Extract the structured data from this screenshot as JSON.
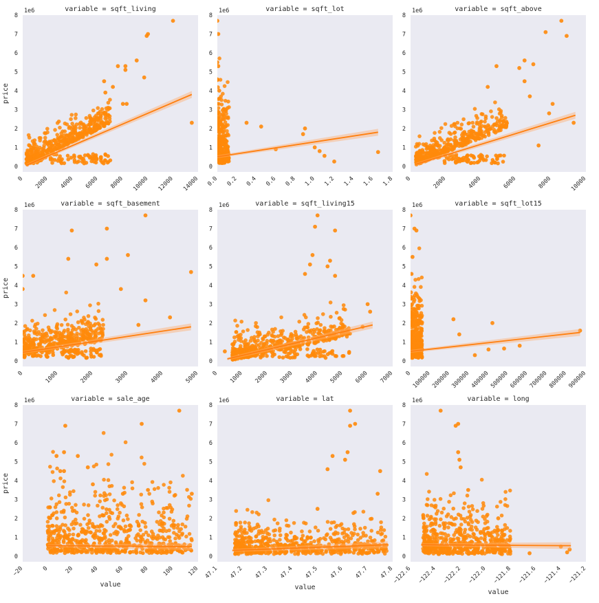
{
  "figure": {
    "x_axis_label": "value",
    "y_axis_label": "price",
    "y_scale_label": "1e6"
  },
  "colors": {
    "point": "#ff8a0a",
    "line": "#ff7f0e",
    "band": "#ffb070",
    "panel_bg": "#eaeaf2",
    "text": "#262626"
  },
  "chart_data": [
    {
      "type": "scatter",
      "title": "variable = sqft_living",
      "xlabel": "",
      "ylabel": "price",
      "xlim": [
        0,
        14000
      ],
      "ylim": [
        -0.3,
        8
      ],
      "xticks": [
        "0",
        "2000",
        "4000",
        "6000",
        "8000",
        "10000",
        "12000",
        "14000"
      ],
      "yticks": [
        "0",
        "1",
        "2",
        "3",
        "4",
        "5",
        "6",
        "7",
        "8"
      ],
      "regression": {
        "x": [
          300,
          13500
        ],
        "y": [
          0.05,
          3.8
        ]
      },
      "notable_points": [
        [
          12000,
          7.7
        ],
        [
          10000,
          7.0
        ],
        [
          9900,
          6.9
        ],
        [
          9100,
          5.6
        ],
        [
          8200,
          5.3
        ],
        [
          7600,
          5.3
        ],
        [
          8200,
          5.1
        ],
        [
          9700,
          4.7
        ],
        [
          13500,
          2.3
        ],
        [
          8000,
          3.3
        ],
        [
          8300,
          3.3
        ],
        [
          7200,
          4.2
        ],
        [
          6600,
          3.9
        ],
        [
          6500,
          4.5
        ]
      ],
      "cloud": {
        "x_min": 300,
        "x_max": 7000,
        "y_base": 0.05,
        "y_slope": 0.00033,
        "spread": 0.55,
        "n": 420
      }
    },
    {
      "type": "scatter",
      "title": "variable = sqft_lot",
      "xlabel": "",
      "ylabel": "",
      "xlim": [
        0,
        1.8
      ],
      "ylim": [
        -0.3,
        8
      ],
      "xticks": [
        "0.0",
        "0.2",
        "0.4",
        "0.6",
        "0.8",
        "1.0",
        "1.2",
        "1.4",
        "1.6",
        "1.8"
      ],
      "yticks": [
        "0",
        "1",
        "2",
        "3",
        "4",
        "5",
        "6",
        "7",
        "8"
      ],
      "regression": {
        "x": [
          0.0,
          1.65
        ],
        "y": [
          0.5,
          1.8
        ]
      },
      "notable_points": [
        [
          0.0,
          7.7
        ],
        [
          0.01,
          7.0
        ],
        [
          0.0,
          5.5
        ],
        [
          0.01,
          5.3
        ],
        [
          0.0,
          4.6
        ],
        [
          0.02,
          4.0
        ],
        [
          0.9,
          2.0
        ],
        [
          0.88,
          1.7
        ],
        [
          1.0,
          1.0
        ],
        [
          1.05,
          0.8
        ],
        [
          1.1,
          0.55
        ],
        [
          1.2,
          0.25
        ],
        [
          1.65,
          0.75
        ],
        [
          0.45,
          2.1
        ],
        [
          0.3,
          2.3
        ],
        [
          0.6,
          0.9
        ]
      ],
      "cloud": {
        "x_min": 0.0,
        "x_max": 0.12,
        "y_base": 0.3,
        "y_slope": 0.0,
        "spread": 1.6,
        "n": 260
      }
    },
    {
      "type": "scatter",
      "title": "variable = sqft_above",
      "xlabel": "",
      "ylabel": "",
      "xlim": [
        0,
        10000
      ],
      "ylim": [
        -0.3,
        8
      ],
      "xticks": [
        "0",
        "2000",
        "4000",
        "6000",
        "8000",
        "10000"
      ],
      "yticks": [
        "0",
        "1",
        "2",
        "3",
        "4",
        "5",
        "6",
        "7",
        "8"
      ],
      "regression": {
        "x": [
          300,
          9400
        ],
        "y": [
          0.1,
          2.7
        ]
      },
      "notable_points": [
        [
          8600,
          7.7
        ],
        [
          7700,
          7.1
        ],
        [
          8900,
          6.9
        ],
        [
          6500,
          5.6
        ],
        [
          7000,
          5.4
        ],
        [
          6200,
          5.2
        ],
        [
          4900,
          5.3
        ],
        [
          6500,
          4.5
        ],
        [
          4400,
          4.2
        ],
        [
          9300,
          2.3
        ],
        [
          8100,
          3.3
        ],
        [
          7900,
          2.8
        ],
        [
          7300,
          1.1
        ],
        [
          6800,
          3.7
        ]
      ],
      "cloud": {
        "x_min": 300,
        "x_max": 5500,
        "y_base": 0.05,
        "y_slope": 0.00038,
        "spread": 0.6,
        "n": 420
      }
    },
    {
      "type": "scatter",
      "title": "variable = sqft_basement",
      "xlabel": "",
      "ylabel": "price",
      "xlim": [
        0,
        5000
      ],
      "ylim": [
        -0.3,
        8
      ],
      "xticks": [
        "0",
        "1000",
        "2000",
        "3000",
        "4000",
        "5000"
      ],
      "yticks": [
        "0",
        "1",
        "2",
        "3",
        "4",
        "5",
        "6",
        "7",
        "8"
      ],
      "regression": {
        "x": [
          0,
          4800
        ],
        "y": [
          0.45,
          1.8
        ]
      },
      "notable_points": [
        [
          3500,
          7.7
        ],
        [
          2400,
          7.0
        ],
        [
          1400,
          6.9
        ],
        [
          3000,
          5.6
        ],
        [
          2400,
          5.4
        ],
        [
          2100,
          5.1
        ],
        [
          1300,
          5.4
        ],
        [
          4800,
          4.7
        ],
        [
          3500,
          3.2
        ],
        [
          4200,
          2.3
        ],
        [
          3300,
          1.9
        ],
        [
          0,
          4.5
        ],
        [
          0,
          3.8
        ],
        [
          300,
          4.5
        ],
        [
          2800,
          3.8
        ]
      ],
      "cloud": {
        "x_min": 0,
        "x_max": 2300,
        "y_base": 0.35,
        "y_slope": 0.0003,
        "spread": 0.75,
        "n": 380
      }
    },
    {
      "type": "scatter",
      "title": "variable = sqft_living15",
      "xlabel": "",
      "ylabel": "",
      "xlim": [
        0,
        7000
      ],
      "ylim": [
        -0.3,
        8
      ],
      "xticks": [
        "0",
        "1000",
        "2000",
        "3000",
        "4000",
        "5000",
        "6000",
        "7000"
      ],
      "yticks": [
        "0",
        "1",
        "2",
        "3",
        "4",
        "5",
        "6",
        "7",
        "8"
      ],
      "regression": {
        "x": [
          400,
          6200
        ],
        "y": [
          0.1,
          1.9
        ]
      },
      "notable_points": [
        [
          4000,
          7.7
        ],
        [
          3900,
          7.1
        ],
        [
          4700,
          6.9
        ],
        [
          3800,
          5.6
        ],
        [
          3700,
          5.1
        ],
        [
          4500,
          5.3
        ],
        [
          4400,
          5.0
        ],
        [
          6000,
          3.0
        ],
        [
          6100,
          2.6
        ],
        [
          5800,
          1.8
        ],
        [
          300,
          0.5
        ],
        [
          4700,
          4.5
        ],
        [
          3500,
          4.6
        ]
      ],
      "cloud": {
        "x_min": 600,
        "x_max": 5300,
        "y_base": 0.0,
        "y_slope": 0.00028,
        "spread": 0.7,
        "n": 430
      }
    },
    {
      "type": "scatter",
      "title": "variable = sqft_lot15",
      "xlabel": "",
      "ylabel": "",
      "xlim": [
        0,
        900000
      ],
      "ylim": [
        -0.3,
        8
      ],
      "xticks": [
        "0",
        "100000",
        "200000",
        "300000",
        "400000",
        "500000",
        "600000",
        "700000",
        "800000",
        "900000"
      ],
      "yticks": [
        "0",
        "1",
        "2",
        "3",
        "4",
        "5",
        "6",
        "7",
        "8"
      ],
      "regression": {
        "x": [
          0,
          870000
        ],
        "y": [
          0.5,
          1.5
        ]
      },
      "notable_points": [
        [
          0,
          7.7
        ],
        [
          20000,
          7.0
        ],
        [
          30000,
          6.9
        ],
        [
          10000,
          5.5
        ],
        [
          5000,
          4.6
        ],
        [
          870000,
          1.6
        ],
        [
          420000,
          2.0
        ],
        [
          560000,
          0.8
        ],
        [
          400000,
          0.6
        ],
        [
          330000,
          0.3
        ],
        [
          220000,
          2.2
        ],
        [
          250000,
          1.4
        ],
        [
          480000,
          0.65
        ]
      ],
      "cloud": {
        "x_min": 0,
        "x_max": 60000,
        "y_base": 0.3,
        "y_slope": 0.0,
        "spread": 1.6,
        "n": 300
      }
    },
    {
      "type": "scatter",
      "title": "variable = sale_age",
      "xlabel": "value",
      "ylabel": "price",
      "xlim": [
        -20,
        120
      ],
      "ylim": [
        -0.3,
        8
      ],
      "xticks": [
        "−20",
        "0",
        "20",
        "40",
        "60",
        "80",
        "100",
        "120"
      ],
      "yticks": [
        "0",
        "1",
        "2",
        "3",
        "4",
        "5",
        "6",
        "7",
        "8"
      ],
      "regression": {
        "x": [
          0,
          115
        ],
        "y": [
          0.55,
          0.5
        ]
      },
      "notable_points": [
        [
          105,
          7.7
        ],
        [
          75,
          7.0
        ],
        [
          14,
          6.9
        ],
        [
          13,
          5.5
        ],
        [
          24,
          5.3
        ],
        [
          7,
          5.3
        ],
        [
          32,
          4.7
        ],
        [
          13,
          4.5
        ],
        [
          10,
          4.5
        ],
        [
          36,
          3.8
        ],
        [
          115,
          3.3
        ],
        [
          60,
          3.3
        ],
        [
          80,
          3.5
        ]
      ],
      "cloud": {
        "x_min": 0,
        "x_max": 115,
        "y_base": 0.15,
        "y_slope": 0.0,
        "spread": 1.9,
        "n": 520
      }
    },
    {
      "type": "scatter",
      "title": "variable = lat",
      "xlabel": "value",
      "ylabel": "",
      "xlim": [
        47.1,
        47.8
      ],
      "ylim": [
        -0.3,
        8
      ],
      "xticks": [
        "47.1",
        "47.2",
        "47.3",
        "47.4",
        "47.5",
        "47.6",
        "47.7",
        "47.8"
      ],
      "yticks": [
        "0",
        "1",
        "2",
        "3",
        "4",
        "5",
        "6",
        "7",
        "8"
      ],
      "regression": {
        "x": [
          47.16,
          47.78
        ],
        "y": [
          0.3,
          0.6
        ]
      },
      "notable_points": [
        [
          47.63,
          7.7
        ],
        [
          47.65,
          7.0
        ],
        [
          47.63,
          6.9
        ],
        [
          47.62,
          5.5
        ],
        [
          47.61,
          5.1
        ],
        [
          47.56,
          5.3
        ],
        [
          47.75,
          4.5
        ],
        [
          47.54,
          4.6
        ],
        [
          47.74,
          3.3
        ],
        [
          47.5,
          2.5
        ],
        [
          47.19,
          0.8
        ],
        [
          47.3,
          1.2
        ]
      ],
      "cloud": {
        "x_min": 47.17,
        "x_max": 47.78,
        "y_base": 0.1,
        "y_slope": 0.0,
        "spread": 0.9,
        "n": 480
      }
    },
    {
      "type": "scatter",
      "title": "variable = long",
      "xlabel": "value",
      "ylabel": "",
      "xlim": [
        -122.6,
        -121.2
      ],
      "ylim": [
        -0.3,
        8
      ],
      "xticks": [
        "−122.6",
        "−122.4",
        "−122.2",
        "−122.0",
        "−121.8",
        "−121.6",
        "−121.4",
        "−121.2"
      ],
      "yticks": [
        "0",
        "1",
        "2",
        "3",
        "4",
        "5",
        "6",
        "7",
        "8"
      ],
      "regression": {
        "x": [
          -122.51,
          -121.32
        ],
        "y": [
          0.6,
          0.55
        ]
      },
      "notable_points": [
        [
          -122.36,
          7.7
        ],
        [
          -122.22,
          7.0
        ],
        [
          -122.24,
          6.9
        ],
        [
          -122.22,
          5.5
        ],
        [
          -122.21,
          5.1
        ],
        [
          -122.2,
          4.7
        ],
        [
          -122.14,
          3.5
        ],
        [
          -121.9,
          2.0
        ],
        [
          -121.4,
          0.5
        ],
        [
          -121.33,
          0.35
        ],
        [
          -121.35,
          0.2
        ],
        [
          -121.65,
          0.15
        ],
        [
          -122.5,
          0.6
        ]
      ],
      "cloud": {
        "x_min": -122.5,
        "x_max": -121.8,
        "y_base": 0.1,
        "y_slope": 0.0,
        "spread": 1.4,
        "n": 460
      }
    }
  ]
}
